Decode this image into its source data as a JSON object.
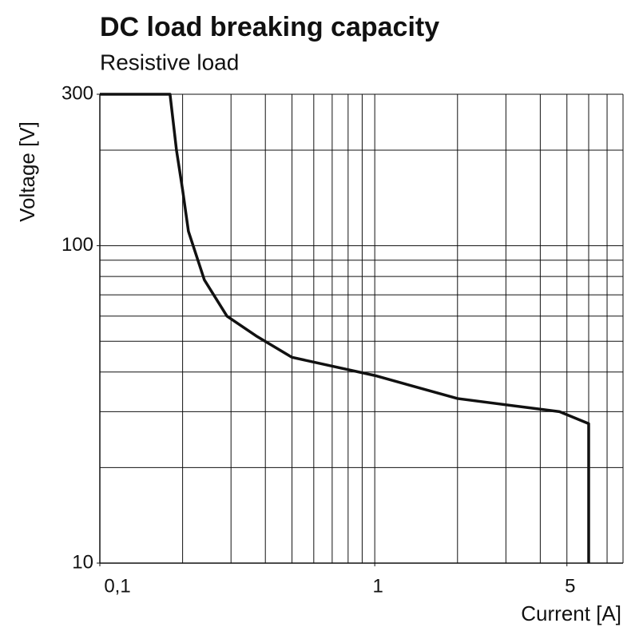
{
  "chart_data": {
    "type": "line",
    "title": "DC load breaking capacity",
    "subtitle": "Resistive load",
    "x_label": "Current [A]",
    "y_label": "Voltage [V]",
    "x_log": true,
    "y_log": true,
    "grid": true,
    "color": "#111111",
    "x": [
      0.1,
      0.18,
      0.19,
      0.2,
      0.21,
      0.24,
      0.29,
      0.37,
      0.5,
      1,
      2,
      4.7,
      6,
      6
    ],
    "values": [
      300,
      300,
      200,
      150,
      111,
      78,
      60,
      52,
      44.5,
      39,
      33,
      30,
      27.5,
      10
    ],
    "xlim": [
      0.1,
      8
    ],
    "ylim": [
      10,
      300
    ],
    "xticks": [
      {
        "value": 0.1,
        "label": "0,1"
      },
      1,
      5
    ],
    "yticks": [
      10,
      100,
      300
    ],
    "xgrid": [
      0.2,
      0.3,
      0.4,
      0.5,
      0.6,
      0.7,
      0.8,
      0.9,
      1,
      2,
      3,
      4,
      5,
      6,
      7,
      8
    ],
    "ygrid": [
      20,
      30,
      40,
      50,
      60,
      70,
      80,
      90,
      100,
      200,
      300
    ]
  }
}
